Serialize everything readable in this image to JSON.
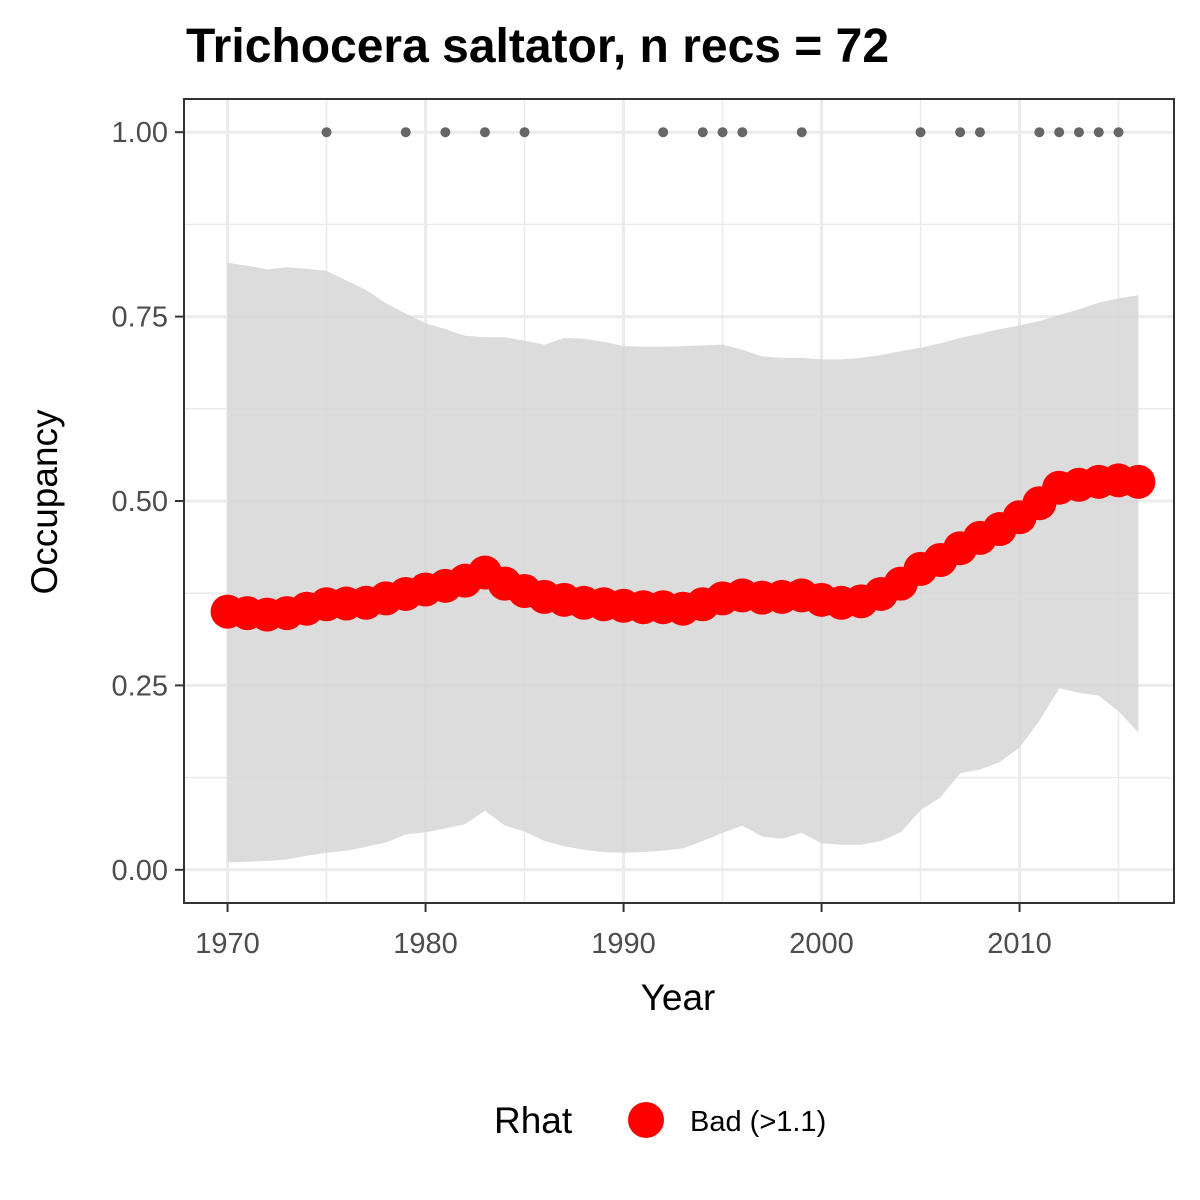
{
  "chart_data": {
    "type": "line",
    "title": "Trichocera saltator, n recs = 72",
    "xlabel": "Year",
    "ylabel": "Occupancy",
    "xlim": [
      1967.8,
      2017.8
    ],
    "ylim": [
      -0.045,
      1.045
    ],
    "x_ticks": [
      1970,
      1980,
      1990,
      2000,
      2010
    ],
    "x_tick_labels": [
      "1970",
      "1980",
      "1990",
      "2000",
      "2010"
    ],
    "y_ticks": [
      0,
      0.25,
      0.5,
      0.75,
      1
    ],
    "y_tick_labels": [
      "0.00",
      "0.25",
      "0.50",
      "0.75",
      "1.00"
    ],
    "grid": true,
    "legend": {
      "position": "bottom",
      "title": "Rhat",
      "entries": [
        {
          "label": "Bad (>1.1)",
          "color": "#ff0000"
        }
      ]
    },
    "colors": {
      "series": "#ff0000",
      "ribbon": "#d6d6d6",
      "records": "#666666",
      "grid": "#ebebeb",
      "border": "#333333"
    },
    "series": [
      {
        "x": [
          1970,
          1971,
          1972,
          1973,
          1974,
          1975,
          1976,
          1977,
          1978,
          1979,
          1980,
          1981,
          1982,
          1983,
          1984,
          1985,
          1986,
          1987,
          1988,
          1989,
          1990,
          1991,
          1992,
          1993,
          1994,
          1995,
          1996,
          1997,
          1998,
          1999,
          2000,
          2001,
          2002,
          2003,
          2004,
          2005,
          2006,
          2007,
          2008,
          2009,
          2010,
          2011,
          2012,
          2013,
          2014,
          2015,
          2016
        ],
        "values": [
          0.35,
          0.348,
          0.346,
          0.348,
          0.354,
          0.36,
          0.361,
          0.362,
          0.368,
          0.374,
          0.38,
          0.385,
          0.392,
          0.403,
          0.388,
          0.378,
          0.37,
          0.366,
          0.362,
          0.36,
          0.358,
          0.356,
          0.356,
          0.354,
          0.36,
          0.368,
          0.372,
          0.369,
          0.37,
          0.372,
          0.366,
          0.362,
          0.364,
          0.374,
          0.388,
          0.408,
          0.42,
          0.436,
          0.45,
          0.462,
          0.478,
          0.497,
          0.518,
          0.522,
          0.526,
          0.528,
          0.526
        ]
      }
    ],
    "ribbon": {
      "x": [
        1970,
        1971,
        1972,
        1973,
        1974,
        1975,
        1976,
        1977,
        1978,
        1979,
        1980,
        1981,
        1982,
        1983,
        1984,
        1985,
        1986,
        1987,
        1988,
        1989,
        1990,
        1991,
        1992,
        1993,
        1994,
        1995,
        1996,
        1997,
        1998,
        1999,
        2000,
        2001,
        2002,
        2003,
        2004,
        2005,
        2006,
        2007,
        2008,
        2009,
        2010,
        2011,
        2012,
        2013,
        2014,
        2015,
        2016
      ],
      "upper": [
        0.823,
        0.819,
        0.814,
        0.817,
        0.815,
        0.812,
        0.799,
        0.786,
        0.768,
        0.754,
        0.741,
        0.733,
        0.724,
        0.722,
        0.722,
        0.717,
        0.712,
        0.721,
        0.72,
        0.716,
        0.71,
        0.709,
        0.709,
        0.71,
        0.711,
        0.712,
        0.705,
        0.696,
        0.694,
        0.694,
        0.692,
        0.692,
        0.694,
        0.698,
        0.703,
        0.708,
        0.714,
        0.721,
        0.727,
        0.733,
        0.738,
        0.744,
        0.752,
        0.76,
        0.769,
        0.775,
        0.779
      ],
      "lower": [
        0.01,
        0.011,
        0.012,
        0.014,
        0.019,
        0.023,
        0.026,
        0.031,
        0.037,
        0.048,
        0.051,
        0.056,
        0.062,
        0.08,
        0.06,
        0.052,
        0.039,
        0.032,
        0.027,
        0.024,
        0.023,
        0.024,
        0.026,
        0.029,
        0.039,
        0.05,
        0.06,
        0.045,
        0.042,
        0.05,
        0.036,
        0.034,
        0.034,
        0.039,
        0.051,
        0.081,
        0.098,
        0.131,
        0.136,
        0.146,
        0.166,
        0.202,
        0.246,
        0.24,
        0.236,
        0.215,
        0.186
      ]
    },
    "records": {
      "y": 1.0,
      "x": [
        1975,
        1979,
        1981,
        1983,
        1985,
        1992,
        1994,
        1995,
        1996,
        1999,
        2005,
        2007,
        2008,
        2011,
        2012,
        2013,
        2014,
        2015
      ]
    }
  }
}
